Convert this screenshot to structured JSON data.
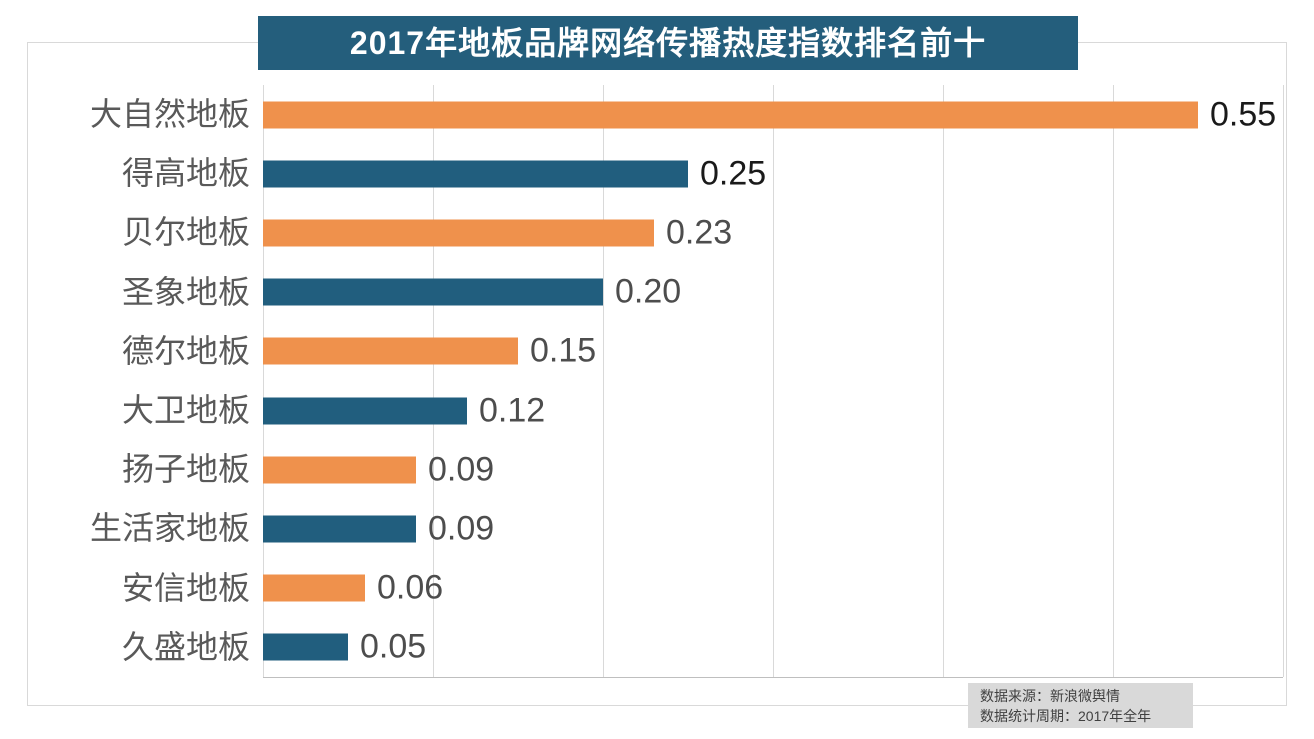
{
  "title": "2017年地板品牌网络传播热度指数排名前十",
  "source_box": {
    "line1": "数据来源：新浪微舆情",
    "line2": "数据统计周期：2017年全年"
  },
  "colors": {
    "title_bg": "#245E7C",
    "title_text": "#FFFFFF",
    "bar_orange": "#EF914C",
    "bar_blue": "#215E7E",
    "category_label": "#595959",
    "gridline": "#D9D9D9",
    "axis_line": "#BFBFBF",
    "chart_border": "#D9D9D9",
    "source_bg": "#D9D9D9",
    "source_text": "#404040"
  },
  "chart_data": {
    "type": "bar",
    "orientation": "horizontal",
    "title": "2017年地板品牌网络传播热度指数排名前十",
    "xlabel": "",
    "ylabel": "",
    "xlim": [
      0,
      0.6
    ],
    "grid_interval": 0.1,
    "grid_on": true,
    "legend": null,
    "categories": [
      "大自然地板",
      "得高地板",
      "贝尔地板",
      "圣象地板",
      "德尔地板",
      "大卫地板",
      "扬子地板",
      "生活家地板",
      "安信地板",
      "久盛地板"
    ],
    "values": [
      0.55,
      0.25,
      0.23,
      0.2,
      0.15,
      0.12,
      0.09,
      0.09,
      0.06,
      0.05
    ],
    "items": [
      {
        "label": "大自然地板",
        "value": 0.55,
        "display": "0.55",
        "bar_color": "#EF914C",
        "value_color": "#1A1A1A"
      },
      {
        "label": "得高地板",
        "value": 0.25,
        "display": "0.25",
        "bar_color": "#215E7E",
        "value_color": "#1A1A1A"
      },
      {
        "label": "贝尔地板",
        "value": 0.23,
        "display": "0.23",
        "bar_color": "#EF914C",
        "value_color": "#4D4D4D"
      },
      {
        "label": "圣象地板",
        "value": 0.2,
        "display": "0.20",
        "bar_color": "#215E7E",
        "value_color": "#4D4D4D"
      },
      {
        "label": "德尔地板",
        "value": 0.15,
        "display": "0.15",
        "bar_color": "#EF914C",
        "value_color": "#4D4D4D"
      },
      {
        "label": "大卫地板",
        "value": 0.12,
        "display": "0.12",
        "bar_color": "#215E7E",
        "value_color": "#4D4D4D"
      },
      {
        "label": "扬子地板",
        "value": 0.09,
        "display": "0.09",
        "bar_color": "#EF914C",
        "value_color": "#4D4D4D"
      },
      {
        "label": "生活家地板",
        "value": 0.09,
        "display": "0.09",
        "bar_color": "#215E7E",
        "value_color": "#4D4D4D"
      },
      {
        "label": "安信地板",
        "value": 0.06,
        "display": "0.06",
        "bar_color": "#EF914C",
        "value_color": "#4D4D4D"
      },
      {
        "label": "久盛地板",
        "value": 0.05,
        "display": "0.05",
        "bar_color": "#215E7E",
        "value_color": "#4D4D4D"
      }
    ]
  }
}
